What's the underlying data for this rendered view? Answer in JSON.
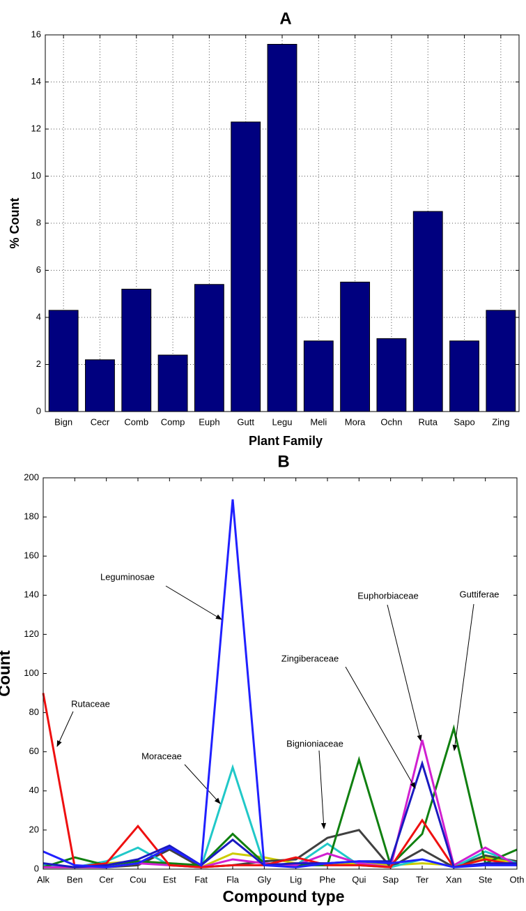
{
  "chart_data": [
    {
      "type": "bar",
      "title": "A",
      "x_label": "Plant Family",
      "y_label": "% Count",
      "categories": [
        "Bign",
        "Cecr",
        "Comb",
        "Comp",
        "Euph",
        "Gutt",
        "Legu",
        "Meli",
        "Mora",
        "Ochn",
        "Ruta",
        "Sapo",
        "Zing"
      ],
      "values": [
        4.3,
        2.2,
        5.2,
        2.4,
        5.4,
        12.3,
        15.6,
        3.0,
        5.5,
        3.1,
        8.5,
        3.0,
        4.3
      ],
      "color": "#00007f",
      "ylim": [
        0,
        16
      ],
      "yticks": [
        0,
        2,
        4,
        6,
        8,
        10,
        12,
        14,
        16
      ],
      "grid": true
    },
    {
      "type": "line",
      "title": "B",
      "x_label": "Compound type",
      "y_label": "Count",
      "categories": [
        "Alk",
        "Ben",
        "Cer",
        "Cou",
        "Est",
        "Fat",
        "Fla",
        "Gly",
        "Lig",
        "Phe",
        "Qui",
        "Sap",
        "Ter",
        "Xan",
        "Ste",
        "Oth"
      ],
      "series": [
        {
          "color": "#cccc00",
          "values": [
            1,
            1,
            3,
            4,
            3,
            1,
            8,
            6,
            3,
            3,
            3,
            2,
            3,
            2,
            6,
            3
          ]
        },
        {
          "name": "Bignioniaceae",
          "color": "#404040",
          "values": [
            1,
            1,
            1,
            2,
            10,
            1,
            2,
            4,
            5,
            16,
            20,
            1,
            10,
            1,
            7,
            4
          ]
        },
        {
          "name": "Moraceae",
          "color": "#20c8c8",
          "values": [
            2,
            1,
            4,
            11,
            2,
            1,
            52,
            2,
            2,
            13,
            2,
            1,
            5,
            1,
            9,
            3
          ]
        },
        {
          "name": "Guttiferae",
          "color": "#108010",
          "values": [
            1,
            6,
            2,
            4,
            3,
            2,
            18,
            3,
            2,
            2,
            56,
            2,
            18,
            72,
            3,
            10
          ]
        },
        {
          "name": "Euphorbiaceae",
          "color": "#d020d0",
          "values": [
            1,
            1,
            1,
            3,
            2,
            1,
            5,
            3,
            2,
            8,
            3,
            1,
            66,
            2,
            11,
            2
          ]
        },
        {
          "name": "Rutaceae",
          "color": "#ee1010",
          "values": [
            90,
            1,
            3,
            22,
            2,
            1,
            2,
            2,
            6,
            2,
            2,
            1,
            25,
            1,
            5,
            2
          ]
        },
        {
          "name": "Zingiberaceae",
          "color": "#1a1ac0",
          "values": [
            3,
            1,
            2,
            5,
            12,
            2,
            15,
            2,
            3,
            3,
            4,
            4,
            54,
            1,
            3,
            3
          ]
        },
        {
          "name": "Leguminosae",
          "color": "#2020ff",
          "values": [
            9,
            2,
            1,
            3,
            11,
            2,
            189,
            2,
            1,
            3,
            4,
            3,
            5,
            1,
            2,
            2
          ]
        }
      ],
      "ylim": [
        0,
        200
      ],
      "yticks": [
        0,
        20,
        40,
        60,
        80,
        100,
        120,
        140,
        160,
        180,
        200
      ],
      "grid": false
    }
  ]
}
